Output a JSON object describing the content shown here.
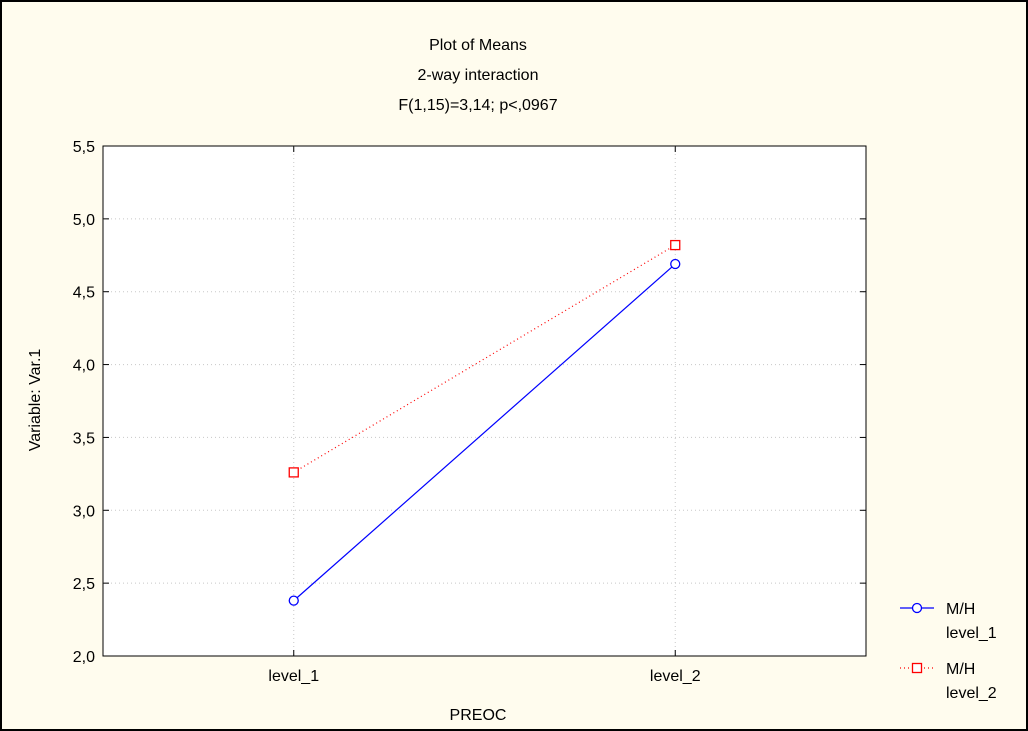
{
  "chart_data": {
    "type": "line",
    "title": "Plot of Means",
    "subtitle_1": "2-way interaction",
    "subtitle_2": "F(1,15)=3,14; p<,0967",
    "xlabel": "PREOC",
    "ylabel": "Variable: Var.1",
    "categories": [
      "level_1",
      "level_2"
    ],
    "ylim": [
      2.0,
      5.5
    ],
    "yticks": [
      "2,0",
      "2,5",
      "3,0",
      "3,5",
      "4,0",
      "4,5",
      "5,0",
      "5,5"
    ],
    "grid": true,
    "legend_position": "right",
    "legend_title": "M/H",
    "series": [
      {
        "name": "level_1",
        "values": [
          2.38,
          4.69
        ],
        "color": "#0000ff",
        "marker": "circle",
        "line": "solid"
      },
      {
        "name": "level_2",
        "values": [
          3.26,
          4.82
        ],
        "color": "#ff0000",
        "marker": "square",
        "line": "dotted"
      }
    ]
  },
  "colors": {
    "background": "#fffcee",
    "plot_area": "#ffffff"
  }
}
